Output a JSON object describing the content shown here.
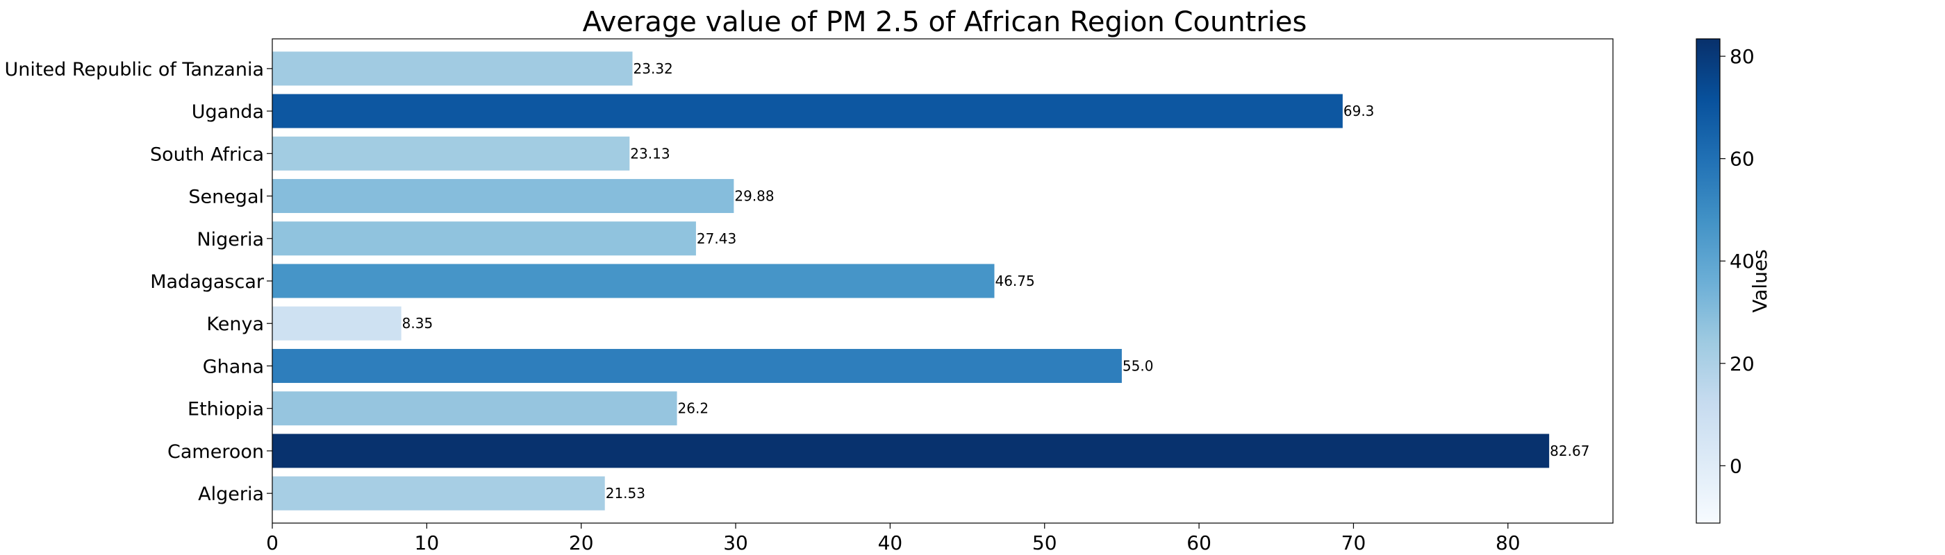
{
  "chart_data": {
    "type": "bar",
    "orientation": "horizontal",
    "title": "Average value of PM 2.5 of African Region Countries",
    "xlabel": "",
    "ylabel": "",
    "categories": [
      "Algeria",
      "Cameroon",
      "Ethiopia",
      "Ghana",
      "Kenya",
      "Madagascar",
      "Nigeria",
      "Senegal",
      "South Africa",
      "Uganda",
      "United Republic of Tanzania"
    ],
    "values": [
      21.53,
      82.67,
      26.2,
      55.0,
      8.35,
      46.75,
      27.43,
      29.88,
      23.13,
      69.3,
      23.32
    ],
    "data_labels": [
      "21.53",
      "82.67",
      "26.2",
      "55.0",
      "8.35",
      "46.75",
      "27.43",
      "29.88",
      "23.13",
      "69.3",
      "23.32"
    ],
    "xlim": [
      0,
      86.8
    ],
    "xticks": [
      0,
      10,
      20,
      30,
      40,
      50,
      60,
      70,
      80
    ],
    "grid": false,
    "colormap": "Blues",
    "colorbar": {
      "label": "Values",
      "range": [
        -11.2,
        83.4
      ],
      "ticks": [
        0,
        20,
        40,
        60,
        80
      ]
    }
  }
}
